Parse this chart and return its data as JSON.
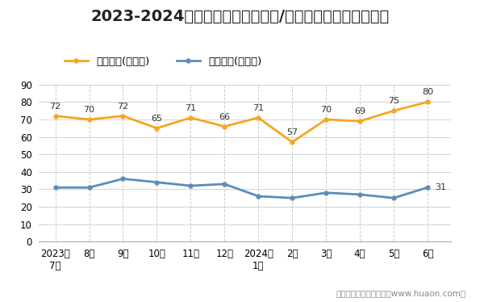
{
  "title": "2023-2024年安徽省（境内目的地/货源地）进、出口额统计",
  "x_labels": [
    "2023年\n7月",
    "8月",
    "9月",
    "10月",
    "11月",
    "12月",
    "2024年\n1月",
    "2月",
    "3月",
    "4月",
    "5月",
    "6月"
  ],
  "export_values": [
    72,
    70,
    72,
    65,
    71,
    66,
    71,
    57,
    70,
    69,
    75,
    80
  ],
  "import_values": [
    31,
    31,
    36,
    34,
    32,
    33,
    26,
    25,
    28,
    27,
    25,
    31
  ],
  "export_label": "出口总额(亿美元)",
  "import_label": "进口总额(亿美元)",
  "export_color": "#F5A623",
  "import_color": "#5B8DB8",
  "ylim": [
    0,
    90
  ],
  "yticks": [
    0,
    10,
    20,
    30,
    40,
    50,
    60,
    70,
    80,
    90
  ],
  "footer": "制图：华经产业研究院（www.huaon.com）",
  "bg_color": "#FFFFFF",
  "plot_bg_color": "#FFFFFF",
  "grid_color": "#CCCCCC",
  "title_fontsize": 14,
  "legend_fontsize": 9.5,
  "label_fontsize": 8,
  "tick_fontsize": 8.5,
  "footer_fontsize": 7.5
}
